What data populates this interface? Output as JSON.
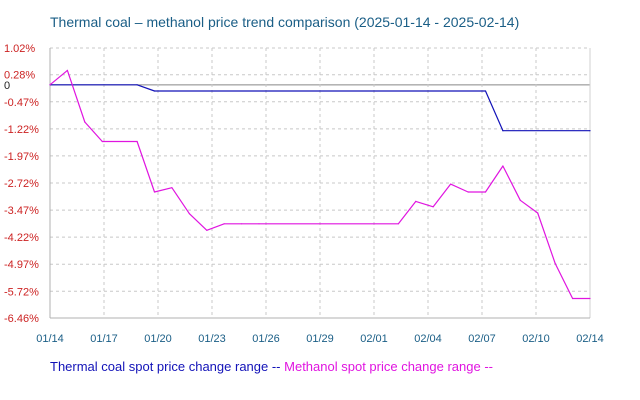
{
  "chart_data": {
    "type": "line",
    "title": "Thermal coal – methanol price trend comparison (2025-01-14 - 2025-02-14)",
    "xlabel": "",
    "ylabel": "",
    "x_ticks": [
      "01/14",
      "01/17",
      "01/20",
      "01/23",
      "01/26",
      "01/29",
      "02/01",
      "02/04",
      "02/07",
      "02/10",
      "02/14"
    ],
    "y_ticks": [
      "1.02%",
      "0.28%",
      "0",
      "-0.47%",
      "-1.22%",
      "-1.97%",
      "-2.72%",
      "-3.47%",
      "-4.22%",
      "-4.97%",
      "-5.72%",
      "-6.46%"
    ],
    "y_tick_values": [
      1.02,
      0.28,
      0,
      -0.47,
      -1.22,
      -1.97,
      -2.72,
      -3.47,
      -4.22,
      -4.97,
      -5.72,
      -6.46
    ],
    "ylim": [
      -6.46,
      1.02
    ],
    "x_range": [
      "2025-01-14",
      "2025-02-14"
    ],
    "grid": true,
    "legend_position": "bottom",
    "colors": {
      "coal": "#1212b8",
      "methanol": "#e015e0",
      "positive_tick": "#cc2222",
      "negative_tick": "#cc2222",
      "zero_tick": "#222222",
      "x_tick": "#1a5e86",
      "grid": "#c8c8c8",
      "zero_line": "#888888"
    },
    "series": [
      {
        "name": "Thermal coal spot price change range --",
        "key": "coal",
        "dates": [
          "2025-01-14",
          "2025-01-19",
          "2025-01-20",
          "2025-02-08",
          "2025-02-09",
          "2025-02-14"
        ],
        "values": [
          0,
          0,
          -0.17,
          -0.17,
          -1.27,
          -1.27
        ]
      },
      {
        "name": "Methanol spot price change range --",
        "key": "methanol",
        "dates": [
          "2025-01-14",
          "2025-01-15",
          "2025-01-16",
          "2025-01-17",
          "2025-01-19",
          "2025-01-20",
          "2025-01-21",
          "2025-01-22",
          "2025-01-23",
          "2025-01-24",
          "2025-01-25",
          "2025-01-26",
          "2025-02-03",
          "2025-02-04",
          "2025-02-05",
          "2025-02-06",
          "2025-02-07",
          "2025-02-08",
          "2025-02-09",
          "2025-02-10",
          "2025-02-11",
          "2025-02-12",
          "2025-02-13",
          "2025-02-14"
        ],
        "values": [
          0,
          0.4,
          -1.03,
          -1.57,
          -1.57,
          -2.97,
          -2.85,
          -3.57,
          -4.03,
          -3.85,
          -3.85,
          -3.85,
          -3.85,
          -3.23,
          -3.38,
          -2.75,
          -2.97,
          -2.97,
          -2.25,
          -3.2,
          -3.55,
          -4.95,
          -5.92,
          -5.92
        ]
      }
    ]
  }
}
